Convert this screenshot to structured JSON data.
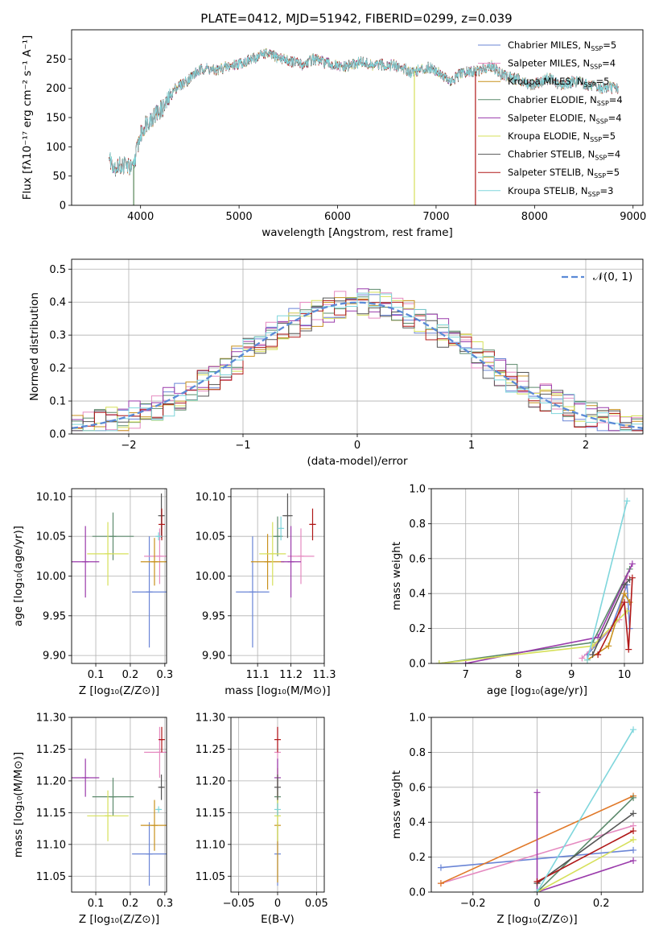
{
  "figure_title": "PLATE=0412, MJD=51942, FIBERID=0299, z=0.039",
  "colors": {
    "Chabrier MILES": "#6a85d6",
    "Salpeter MILES": "#e58ac0",
    "Kroupa MILES": "#c8911c",
    "Chabrier ELODIE": "#5c8a6c",
    "Salpeter ELODIE": "#9a3aab",
    "Kroupa ELODIE": "#d6e05a",
    "Chabrier STELIB": "#555555",
    "Salpeter STELIB": "#b01818",
    "Kroupa STELIB": "#7fd6dc",
    "extra": "#e07828"
  },
  "chart_data": [
    {
      "panel": "spectrum",
      "type": "line",
      "title": "PLATE=0412, MJD=51942, FIBERID=0299, z=0.039",
      "xlabel": "wavelength [Angstrom, rest frame]",
      "ylabel": "Flux [fλ10⁻¹⁷ erg cm⁻² s⁻¹ A⁻¹]",
      "xlim": [
        3300,
        9100
      ],
      "ylim": [
        0,
        300
      ],
      "xticks": [
        4000,
        5000,
        6000,
        7000,
        8000,
        9000
      ],
      "yticks": [
        0,
        50,
        100,
        150,
        200,
        250
      ],
      "legend_position": "top-right",
      "legend": [
        {
          "label": "Chabrier MILES, N_SSP=5",
          "text": "Chabrier MILES, N",
          "n": "=5"
        },
        {
          "label": "Salpeter MILES, N_SSP=4",
          "text": "Salpeter MILES, N",
          "n": "=4"
        },
        {
          "label": "Kroupa MILES, N_SSP=5",
          "text": "Kroupa MILES, N",
          "n": "=5"
        },
        {
          "label": "Chabrier ELODIE, N_SSP=4",
          "text": "Chabrier ELODIE, N",
          "n": "=4"
        },
        {
          "label": "Salpeter ELODIE, N_SSP=4",
          "text": "Salpeter ELODIE, N",
          "n": "=4"
        },
        {
          "label": "Kroupa ELODIE, N_SSP=5",
          "text": "Kroupa ELODIE, N",
          "n": "=5"
        },
        {
          "label": "Chabrier STELIB, N_SSP=4",
          "text": "Chabrier STELIB, N",
          "n": "=4"
        },
        {
          "label": "Salpeter STELIB, N_SSP=5",
          "text": "Salpeter STELIB, N",
          "n": "=5"
        },
        {
          "label": "Kroupa STELIB, N_SSP=3",
          "text": "Kroupa STELIB, N",
          "n": "=3"
        }
      ],
      "x": [
        3680,
        3750,
        3850,
        3920,
        3980,
        4050,
        4150,
        4250,
        4350,
        4450,
        4550,
        4650,
        4750,
        4850,
        4950,
        5050,
        5150,
        5250,
        5350,
        5450,
        5550,
        5650,
        5750,
        5850,
        5950,
        6050,
        6150,
        6250,
        6350,
        6450,
        6550,
        6650,
        6750,
        6850,
        6950,
        7050,
        7150,
        7250,
        7350,
        7450,
        7550,
        7650,
        7750,
        7850,
        7950,
        8050,
        8150,
        8250,
        8350,
        8450,
        8550,
        8650,
        8750,
        8850
      ],
      "y": [
        80,
        65,
        70,
        60,
        110,
        140,
        155,
        170,
        200,
        210,
        225,
        235,
        230,
        235,
        240,
        245,
        250,
        260,
        255,
        250,
        245,
        240,
        250,
        245,
        240,
        235,
        240,
        245,
        238,
        240,
        240,
        235,
        228,
        232,
        236,
        225,
        210,
        225,
        228,
        230,
        240,
        225,
        218,
        215,
        205,
        210,
        218,
        205,
        210,
        212,
        205,
        200,
        202,
        200
      ],
      "drop_lines": [
        {
          "series": "Kroupa ELODIE",
          "x_start": 3680,
          "x_end": 3930
        },
        {
          "series": "Chabrier ELODIE",
          "x_start": 3680,
          "x_end": 3930
        },
        {
          "series": "Kroupa ELODIE",
          "x_start": 6780,
          "x_end": 9100
        },
        {
          "series": "Salpeter STELIB",
          "x_start": 7400,
          "x_end": 9100
        }
      ]
    },
    {
      "panel": "residuals",
      "type": "line",
      "xlabel": "(data-model)/error",
      "ylabel": "Normed distribution",
      "xlim": [
        -2.5,
        2.5
      ],
      "ylim": [
        0,
        0.53
      ],
      "xticks": [
        -2,
        -1,
        0,
        1,
        2
      ],
      "yticks": [
        0.0,
        0.1,
        0.2,
        0.3,
        0.4,
        0.5
      ],
      "grid": true,
      "legend_position": "top-right",
      "reference_curve": {
        "label": "𝒩(0, 1)",
        "mean": 0,
        "sigma": 1,
        "color": "#5a8ad6"
      },
      "bin_width": 0.1,
      "bins_start": -2.5,
      "base_series": "normal density of (data-model)/error, 50 bins from -2.5 to 2.5"
    },
    {
      "panel": "age-Z",
      "type": "scatter",
      "xlabel": "Z [log₁₀(Z/Z⊙)]",
      "ylabel": "age  [log₁₀(age/yr)]",
      "xlim": [
        0.03,
        0.305
      ],
      "ylim": [
        9.89,
        10.11
      ],
      "xticks": [
        0.1,
        0.2,
        0.3
      ],
      "yticks": [
        9.9,
        9.95,
        10.0,
        10.05,
        10.1
      ],
      "grid": true,
      "points": [
        {
          "series": "Chabrier MILES",
          "x": 0.255,
          "y": 9.98,
          "xerr": 0.05,
          "yerr": 0.07
        },
        {
          "series": "Salpeter MILES",
          "x": 0.285,
          "y": 10.025,
          "xerr": 0.045,
          "yerr": 0.035
        },
        {
          "series": "Kroupa MILES",
          "x": 0.27,
          "y": 10.018,
          "xerr": 0.04,
          "yerr": 0.03
        },
        {
          "series": "Chabrier ELODIE",
          "x": 0.15,
          "y": 10.05,
          "xerr": 0.06,
          "yerr": 0.03
        },
        {
          "series": "Salpeter ELODIE",
          "x": 0.07,
          "y": 10.018,
          "xerr": 0.04,
          "yerr": 0.045
        },
        {
          "series": "Kroupa ELODIE",
          "x": 0.135,
          "y": 10.028,
          "xerr": 0.06,
          "yerr": 0.04
        },
        {
          "series": "Chabrier STELIB",
          "x": 0.29,
          "y": 10.076,
          "xerr": 0.005,
          "yerr": 0.028
        },
        {
          "series": "Salpeter STELIB",
          "x": 0.291,
          "y": 10.065,
          "xerr": 0.004,
          "yerr": 0.02
        },
        {
          "series": "Kroupa STELIB",
          "x": 0.282,
          "y": 10.05,
          "xerr": 0.006,
          "yerr": 0.005
        }
      ]
    },
    {
      "panel": "age-mass",
      "type": "scatter",
      "xlabel": "mass [log₁₀(M/M⊙)]",
      "ylabel": "",
      "xlim": [
        11.02,
        11.3
      ],
      "ylim": [
        9.89,
        10.11
      ],
      "xticks": [
        11.1,
        11.2,
        11.3
      ],
      "yticks": [
        9.9,
        9.95,
        10.0,
        10.05,
        10.1
      ],
      "grid": true,
      "points": [
        {
          "series": "Chabrier MILES",
          "x": 11.085,
          "y": 9.98,
          "xerr": 0.05,
          "yerr": 0.07
        },
        {
          "series": "Salpeter MILES",
          "x": 11.23,
          "y": 10.025,
          "xerr": 0.04,
          "yerr": 0.035
        },
        {
          "series": "Kroupa MILES",
          "x": 11.13,
          "y": 10.018,
          "xerr": 0.05,
          "yerr": 0.035
        },
        {
          "series": "Chabrier ELODIE",
          "x": 11.16,
          "y": 10.05,
          "xerr": 0.015,
          "yerr": 0.025
        },
        {
          "series": "Salpeter ELODIE",
          "x": 11.2,
          "y": 10.018,
          "xerr": 0.03,
          "yerr": 0.045
        },
        {
          "series": "Kroupa ELODIE",
          "x": 11.145,
          "y": 10.028,
          "xerr": 0.04,
          "yerr": 0.04
        },
        {
          "series": "Chabrier STELIB",
          "x": 11.19,
          "y": 10.076,
          "xerr": 0.015,
          "yerr": 0.028
        },
        {
          "series": "Salpeter STELIB",
          "x": 11.265,
          "y": 10.065,
          "xerr": 0.01,
          "yerr": 0.02
        },
        {
          "series": "Kroupa STELIB",
          "x": 11.17,
          "y": 10.06,
          "xerr": 0.005,
          "yerr": 0.015
        }
      ]
    },
    {
      "panel": "weight-age",
      "type": "line",
      "xlabel": "age  [log₁₀(age/yr)]",
      "ylabel": "mass weight",
      "xlim": [
        6.35,
        10.35
      ],
      "ylim": [
        0,
        1.0
      ],
      "xticks": [
        7,
        8,
        9,
        10
      ],
      "yticks": [
        0.0,
        0.2,
        0.4,
        0.6,
        0.8,
        1.0
      ],
      "grid": true,
      "series": [
        {
          "name": "Chabrier MILES",
          "x": [
            9.3,
            9.75,
            10.05,
            10.1
          ],
          "y": [
            0.05,
            0.2,
            0.45,
            0.2
          ]
        },
        {
          "name": "Salpeter MILES",
          "x": [
            9.2,
            9.9,
            10.05
          ],
          "y": [
            0.03,
            0.25,
            0.5
          ]
        },
        {
          "name": "Kroupa MILES",
          "x": [
            9.3,
            9.7,
            10.0,
            10.1
          ],
          "y": [
            0.02,
            0.1,
            0.4,
            0.35
          ]
        },
        {
          "name": "Chabrier ELODIE",
          "x": [
            6.5,
            9.4,
            10.1
          ],
          "y": [
            0.0,
            0.12,
            0.54
          ]
        },
        {
          "name": "Salpeter ELODIE",
          "x": [
            7.0,
            9.5,
            10.15
          ],
          "y": [
            0.0,
            0.15,
            0.57
          ]
        },
        {
          "name": "Kroupa ELODIE",
          "x": [
            6.5,
            9.4,
            10.05
          ],
          "y": [
            0.0,
            0.1,
            0.3
          ]
        },
        {
          "name": "Chabrier STELIB",
          "x": [
            9.4,
            10.0,
            10.1
          ],
          "y": [
            0.05,
            0.45,
            0.48
          ]
        },
        {
          "name": "Salpeter STELIB",
          "x": [
            9.5,
            10.0,
            10.08,
            10.15
          ],
          "y": [
            0.05,
            0.35,
            0.08,
            0.49
          ]
        },
        {
          "name": "Kroupa STELIB",
          "x": [
            9.3,
            10.05
          ],
          "y": [
            0.02,
            0.93
          ]
        }
      ]
    },
    {
      "panel": "mass-Z",
      "type": "scatter",
      "xlabel": "Z [log₁₀(Z/Z⊙)]",
      "ylabel": "mass [log₁₀(M/M⊙)]",
      "xlim": [
        0.03,
        0.305
      ],
      "ylim": [
        11.025,
        11.3
      ],
      "xticks": [
        0.1,
        0.2,
        0.3
      ],
      "yticks": [
        11.05,
        11.1,
        11.15,
        11.2,
        11.25,
        11.3
      ],
      "grid": true,
      "points": [
        {
          "series": "Chabrier MILES",
          "x": 0.255,
          "y": 11.085,
          "xerr": 0.05,
          "yerr": 0.05
        },
        {
          "series": "Salpeter MILES",
          "x": 0.285,
          "y": 11.245,
          "xerr": 0.045,
          "yerr": 0.04
        },
        {
          "series": "Kroupa MILES",
          "x": 0.27,
          "y": 11.13,
          "xerr": 0.04,
          "yerr": 0.04
        },
        {
          "series": "Chabrier ELODIE",
          "x": 0.15,
          "y": 11.175,
          "xerr": 0.06,
          "yerr": 0.03
        },
        {
          "series": "Salpeter ELODIE",
          "x": 0.07,
          "y": 11.205,
          "xerr": 0.04,
          "yerr": 0.03
        },
        {
          "series": "Kroupa ELODIE",
          "x": 0.135,
          "y": 11.145,
          "xerr": 0.06,
          "yerr": 0.04
        },
        {
          "series": "Chabrier STELIB",
          "x": 0.29,
          "y": 11.19,
          "xerr": 0.005,
          "yerr": 0.02
        },
        {
          "series": "Salpeter STELIB",
          "x": 0.291,
          "y": 11.265,
          "xerr": 0.004,
          "yerr": 0.02
        },
        {
          "series": "Kroupa STELIB",
          "x": 0.282,
          "y": 11.155,
          "xerr": 0.006,
          "yerr": 0.005
        }
      ]
    },
    {
      "panel": "mass-EBV",
      "type": "scatter",
      "xlabel": "E(B-V)",
      "ylabel": "",
      "xlim": [
        -0.06,
        0.06
      ],
      "ylim": [
        11.025,
        11.3
      ],
      "xticks": [
        -0.05,
        0.0,
        0.05
      ],
      "yticks": [
        11.05,
        11.1,
        11.15,
        11.2,
        11.25,
        11.3
      ],
      "grid": true,
      "points": [
        {
          "series": "Chabrier MILES",
          "x": 0.0,
          "y": 11.085,
          "yerr": 0.05
        },
        {
          "series": "Salpeter MILES",
          "x": 0.0,
          "y": 11.245,
          "yerr": 0.04
        },
        {
          "series": "Kroupa MILES",
          "x": 0.0,
          "y": 11.13,
          "yerr": 0.09
        },
        {
          "series": "Chabrier ELODIE",
          "x": 0.0,
          "y": 11.175,
          "yerr": 0.03
        },
        {
          "series": "Salpeter ELODIE",
          "x": 0.0,
          "y": 11.205,
          "yerr": 0.03
        },
        {
          "series": "Kroupa ELODIE",
          "x": 0.0,
          "y": 11.145,
          "yerr": 0.04
        },
        {
          "series": "Chabrier STELIB",
          "x": 0.0,
          "y": 11.19,
          "yerr": 0.02
        },
        {
          "series": "Salpeter STELIB",
          "x": 0.0,
          "y": 11.265,
          "yerr": 0.02
        },
        {
          "series": "Kroupa STELIB",
          "x": 0.0,
          "y": 11.155,
          "yerr": 0.01
        }
      ]
    },
    {
      "panel": "weight-Z",
      "type": "line",
      "xlabel": "Z [log₁₀(Z/Z⊙)]",
      "ylabel": "mass weight",
      "xlim": [
        -0.33,
        0.33
      ],
      "ylim": [
        0,
        1.0
      ],
      "xticks": [
        -0.2,
        0.0,
        0.2
      ],
      "yticks": [
        0.0,
        0.2,
        0.4,
        0.6,
        0.8,
        1.0
      ],
      "grid": true,
      "series": [
        {
          "name": "Chabrier MILES",
          "x": [
            -0.3,
            0.3
          ],
          "y": [
            0.14,
            0.24
          ]
        },
        {
          "name": "Salpeter MILES",
          "x": [
            -0.3,
            0.3
          ],
          "y": [
            0.05,
            0.38
          ]
        },
        {
          "name": "extra",
          "x": [
            -0.3,
            0.3
          ],
          "y": [
            0.05,
            0.55
          ]
        },
        {
          "name": "Chabrier ELODIE",
          "x": [
            0.0,
            0.3
          ],
          "y": [
            0.0,
            0.54
          ]
        },
        {
          "name": "Salpeter ELODIE",
          "x": [
            0.0,
            0.0,
            0.3
          ],
          "y": [
            0.57,
            0.0,
            0.18
          ]
        },
        {
          "name": "Kroupa ELODIE",
          "x": [
            0.0,
            0.3
          ],
          "y": [
            0.0,
            0.3
          ]
        },
        {
          "name": "Chabrier STELIB",
          "x": [
            0.0,
            0.3
          ],
          "y": [
            0.05,
            0.45
          ]
        },
        {
          "name": "Salpeter STELIB",
          "x": [
            0.0,
            0.3
          ],
          "y": [
            0.06,
            0.35
          ]
        },
        {
          "name": "Kroupa STELIB",
          "x": [
            0.0,
            0.3
          ],
          "y": [
            0.0,
            0.93
          ]
        }
      ]
    }
  ]
}
